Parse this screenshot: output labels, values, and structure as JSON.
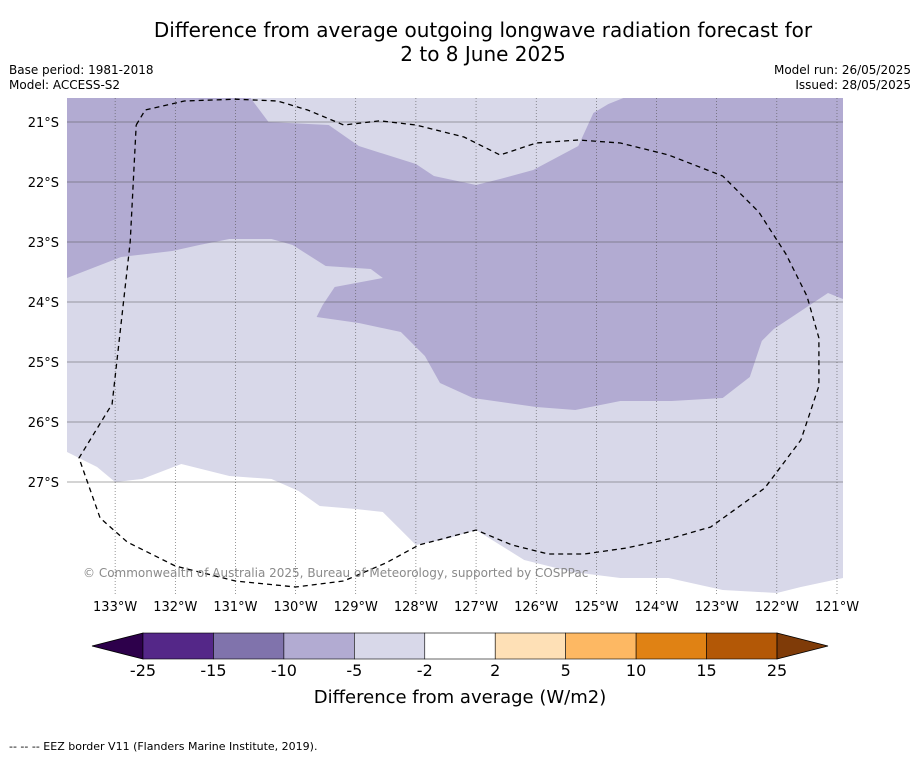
{
  "header": {
    "title_line1": "Difference from average outgoing longwave radiation forecast for",
    "title_line2": "2 to 8 June 2025",
    "base_period": "Base period: 1981-2018",
    "model": "Model: ACCESS-S2",
    "model_run": "Model run: 26/05/2025",
    "issued": "Issued: 28/05/2025"
  },
  "chart_data": {
    "type": "heatmap",
    "title": "Difference from average outgoing longwave radiation forecast for 2 to 8 June 2025",
    "xlabel": "",
    "ylabel": "",
    "xlim": [
      -133.8,
      -120.9
    ],
    "ylim": [
      -28.9,
      -20.6
    ],
    "lon_ticks": [
      -133,
      -132,
      -131,
      -130,
      -129,
      -128,
      -127,
      -126,
      -125,
      -124,
      -123,
      -122,
      -121
    ],
    "lon_tick_labels": [
      "133°W",
      "132°W",
      "131°W",
      "130°W",
      "129°W",
      "128°W",
      "127°W",
      "126°W",
      "125°W",
      "124°W",
      "123°W",
      "122°W",
      "121°W"
    ],
    "lat_ticks": [
      -21,
      -22,
      -23,
      -24,
      -25,
      -26,
      -27
    ],
    "lat_tick_labels": [
      "21°S",
      "22°S",
      "23°S",
      "24°S",
      "25°S",
      "26°S",
      "27°S"
    ],
    "grid": true,
    "copyright": "© Commonwealth of Australia 2025, Bureau of Meteorology, supported by COSPPac",
    "regions": [
      {
        "name": "-10 to -5",
        "color": "#b2abd2",
        "polygon": [
          [
            -133.8,
            -20.6
          ],
          [
            -130.75,
            -20.6
          ],
          [
            -130.45,
            -21.0
          ],
          [
            -129.45,
            -21.05
          ],
          [
            -128.95,
            -21.4
          ],
          [
            -128.0,
            -21.7
          ],
          [
            -127.7,
            -21.9
          ],
          [
            -127.0,
            -22.05
          ],
          [
            -126.6,
            -21.95
          ],
          [
            -126.05,
            -21.8
          ],
          [
            -125.3,
            -21.4
          ],
          [
            -125.05,
            -20.85
          ],
          [
            -124.8,
            -20.7
          ],
          [
            -124.55,
            -20.6
          ],
          [
            -120.9,
            -20.6
          ],
          [
            -120.9,
            -23.95
          ],
          [
            -121.15,
            -23.85
          ],
          [
            -121.6,
            -24.15
          ],
          [
            -122.05,
            -24.45
          ],
          [
            -122.25,
            -24.65
          ],
          [
            -122.45,
            -25.25
          ],
          [
            -122.9,
            -25.6
          ],
          [
            -123.75,
            -25.65
          ],
          [
            -124.6,
            -25.65
          ],
          [
            -125.35,
            -25.8
          ],
          [
            -126.0,
            -25.75
          ],
          [
            -127.05,
            -25.6
          ],
          [
            -127.6,
            -25.35
          ],
          [
            -127.85,
            -24.9
          ],
          [
            -128.25,
            -24.5
          ],
          [
            -128.95,
            -24.35
          ],
          [
            -129.65,
            -24.25
          ],
          [
            -129.55,
            -24.05
          ],
          [
            -129.35,
            -23.75
          ],
          [
            -128.55,
            -23.6
          ],
          [
            -128.75,
            -23.45
          ],
          [
            -129.5,
            -23.4
          ],
          [
            -130.05,
            -23.05
          ],
          [
            -130.4,
            -22.95
          ],
          [
            -131.1,
            -22.95
          ],
          [
            -131.6,
            -23.05
          ],
          [
            -132.05,
            -23.15
          ],
          [
            -132.9,
            -23.25
          ],
          [
            -133.8,
            -23.6
          ]
        ]
      },
      {
        "name": "-5 to -2",
        "color": "#d8d8e9",
        "polygon": [
          [
            -133.8,
            -20.6
          ],
          [
            -120.9,
            -20.6
          ],
          [
            -120.9,
            -28.6
          ],
          [
            -121.6,
            -28.75
          ],
          [
            -122.0,
            -28.85
          ],
          [
            -122.9,
            -28.8
          ],
          [
            -123.8,
            -28.6
          ],
          [
            -124.6,
            -28.6
          ],
          [
            -125.4,
            -28.5
          ],
          [
            -126.2,
            -28.3
          ],
          [
            -127.0,
            -27.8
          ],
          [
            -127.5,
            -27.95
          ],
          [
            -128.0,
            -28.05
          ],
          [
            -128.55,
            -27.5
          ],
          [
            -129.0,
            -27.45
          ],
          [
            -129.6,
            -27.4
          ],
          [
            -129.95,
            -27.15
          ],
          [
            -130.4,
            -26.95
          ],
          [
            -131.1,
            -26.9
          ],
          [
            -131.9,
            -26.7
          ],
          [
            -132.55,
            -26.95
          ],
          [
            -133.0,
            -27.0
          ],
          [
            -133.3,
            -26.75
          ],
          [
            -133.8,
            -26.5
          ]
        ]
      }
    ],
    "eez_border": [
      [
        -132.65,
        -21.05
      ],
      [
        -132.5,
        -20.8
      ],
      [
        -131.85,
        -20.65
      ],
      [
        -131.0,
        -20.62
      ],
      [
        -130.3,
        -20.65
      ],
      [
        -129.8,
        -20.8
      ],
      [
        -129.2,
        -21.05
      ],
      [
        -128.6,
        -20.98
      ],
      [
        -128.0,
        -21.05
      ],
      [
        -127.2,
        -21.25
      ],
      [
        -126.6,
        -21.55
      ],
      [
        -126.0,
        -21.35
      ],
      [
        -125.3,
        -21.3
      ],
      [
        -124.6,
        -21.35
      ],
      [
        -123.8,
        -21.55
      ],
      [
        -122.9,
        -21.9
      ],
      [
        -122.3,
        -22.5
      ],
      [
        -121.85,
        -23.2
      ],
      [
        -121.5,
        -23.9
      ],
      [
        -121.3,
        -24.6
      ],
      [
        -121.3,
        -25.4
      ],
      [
        -121.6,
        -26.3
      ],
      [
        -122.2,
        -27.1
      ],
      [
        -123.1,
        -27.75
      ],
      [
        -123.8,
        -27.95
      ],
      [
        -124.5,
        -28.1
      ],
      [
        -125.2,
        -28.2
      ],
      [
        -125.8,
        -28.2
      ],
      [
        -126.4,
        -28.05
      ],
      [
        -127.0,
        -27.8
      ],
      [
        -127.95,
        -28.05
      ],
      [
        -128.5,
        -28.35
      ],
      [
        -129.2,
        -28.65
      ],
      [
        -130.0,
        -28.75
      ],
      [
        -131.0,
        -28.65
      ],
      [
        -132.0,
        -28.4
      ],
      [
        -132.8,
        -28.0
      ],
      [
        -133.25,
        -27.6
      ],
      [
        -133.6,
        -26.6
      ],
      [
        -133.05,
        -25.7
      ],
      [
        -132.75,
        -23.0
      ],
      [
        -132.65,
        -21.05
      ]
    ],
    "colorbar": {
      "label": "Difference from average (W/m2)",
      "bounds": [
        "-25",
        "-15",
        "-10",
        "-5",
        "-2",
        "2",
        "5",
        "10",
        "15",
        "25"
      ],
      "colors": [
        "#542788",
        "#8073ac",
        "#b2abd2",
        "#d8d8e9",
        "#ffffff",
        "#fee0b6",
        "#fdb863",
        "#e08214",
        "#b35806"
      ],
      "extend_min_color": "#2d004b",
      "extend_max_color": "#7f3b08"
    }
  },
  "footer": {
    "legend_text": "--  --  -- EEZ border V11 (Flanders Marine Institute, 2019)."
  }
}
